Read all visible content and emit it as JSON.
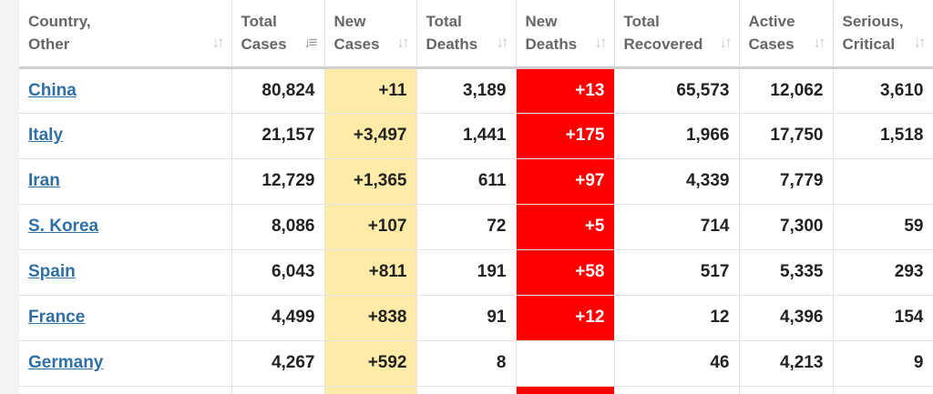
{
  "table": {
    "columns": [
      {
        "label_1": "Country,",
        "label_2": "Other",
        "sort_icon": "sort-arrows-icon"
      },
      {
        "label_1": "Total",
        "label_2": "Cases",
        "sort_icon": "sort-desc-active-icon"
      },
      {
        "label_1": "New",
        "label_2": "Cases",
        "sort_icon": "sort-arrows-icon"
      },
      {
        "label_1": "Total",
        "label_2": "Deaths",
        "sort_icon": "sort-arrows-icon"
      },
      {
        "label_1": "New",
        "label_2": "Deaths",
        "sort_icon": "sort-arrows-icon"
      },
      {
        "label_1": "Total",
        "label_2": "Recovered",
        "sort_icon": "sort-arrows-icon"
      },
      {
        "label_1": "Active",
        "label_2": "Cases",
        "sort_icon": "sort-arrows-icon"
      },
      {
        "label_1": "Serious,",
        "label_2": "Critical",
        "sort_icon": "sort-arrows-icon"
      }
    ],
    "rows": [
      {
        "country": "China",
        "total_cases": "80,824",
        "new_cases": "+11",
        "total_deaths": "3,189",
        "new_deaths": "+13",
        "total_recovered": "65,573",
        "active_cases": "12,062",
        "serious_critical": "3,610"
      },
      {
        "country": "Italy",
        "total_cases": "21,157",
        "new_cases": "+3,497",
        "total_deaths": "1,441",
        "new_deaths": "+175",
        "total_recovered": "1,966",
        "active_cases": "17,750",
        "serious_critical": "1,518"
      },
      {
        "country": "Iran",
        "total_cases": "12,729",
        "new_cases": "+1,365",
        "total_deaths": "611",
        "new_deaths": "+97",
        "total_recovered": "4,339",
        "active_cases": "7,779",
        "serious_critical": ""
      },
      {
        "country": "S. Korea",
        "total_cases": "8,086",
        "new_cases": "+107",
        "total_deaths": "72",
        "new_deaths": "+5",
        "total_recovered": "714",
        "active_cases": "7,300",
        "serious_critical": "59"
      },
      {
        "country": "Spain",
        "total_cases": "6,043",
        "new_cases": "+811",
        "total_deaths": "191",
        "new_deaths": "+58",
        "total_recovered": "517",
        "active_cases": "5,335",
        "serious_critical": "293"
      },
      {
        "country": "France",
        "total_cases": "4,499",
        "new_cases": "+838",
        "total_deaths": "91",
        "new_deaths": "+12",
        "total_recovered": "12",
        "active_cases": "4,396",
        "serious_critical": "154"
      },
      {
        "country": "Germany",
        "total_cases": "4,267",
        "new_cases": "+592",
        "total_deaths": "8",
        "new_deaths": "",
        "total_recovered": "46",
        "active_cases": "4,213",
        "serious_critical": "9"
      }
    ]
  },
  "colors": {
    "link": "#2f6fa4",
    "new_cases_bg": "#fdeba7",
    "new_deaths_bg": "#ff0000",
    "header_text": "#666666"
  }
}
